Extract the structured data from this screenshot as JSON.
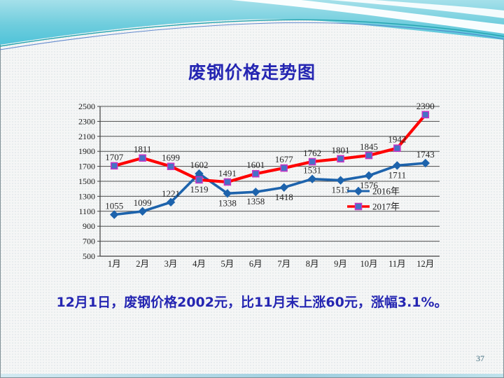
{
  "slide": {
    "title": "废钢价格走势图",
    "caption": "12月1日，废钢价格2002元，比11月末上涨60元，涨幅3.1%。",
    "page_number": "37"
  },
  "colors": {
    "title_text": "#2526b2",
    "caption_text": "#2526b2",
    "grid": "#4d4d4d",
    "axis": "#3f3f3f",
    "banner_teal_light": "#a5e0ea",
    "banner_teal_dark": "#4fc3d9",
    "accent_line_teal": "#21a3ae",
    "accent_line_blue": "#4a78c8"
  },
  "chart_data": {
    "type": "line",
    "title": "",
    "xlabel": "",
    "ylabel": "",
    "categories": [
      "1月",
      "2月",
      "3月",
      "4月",
      "5月",
      "6月",
      "7月",
      "8月",
      "9月",
      "10月",
      "11月",
      "12月"
    ],
    "series": [
      {
        "name": "2016年",
        "color": "#1d63ac",
        "line_width": 3.6,
        "marker": "diamond",
        "marker_fill": "#1d63ac",
        "marker_stroke": "#1d63ac",
        "values": [
          1055,
          1099,
          1221,
          1602,
          1338,
          1358,
          1418,
          1531,
          1513,
          1576,
          1711,
          1743
        ],
        "label_side": [
          "above",
          "above",
          "above",
          "above",
          "below",
          "below",
          "below",
          "above",
          "below",
          "below",
          "below",
          "above"
        ]
      },
      {
        "name": "2017年",
        "color": "#fe0000",
        "line_width": 4.2,
        "marker": "square",
        "marker_fill": "#4472c4",
        "marker_stroke": "#c633c6",
        "values": [
          1707,
          1811,
          1699,
          1519,
          1491,
          1601,
          1677,
          1762,
          1801,
          1845,
          1942,
          2390
        ],
        "label_side": [
          "above",
          "above",
          "above",
          "below",
          "above",
          "above",
          "above",
          "above",
          "above",
          "above",
          "above",
          "above"
        ]
      }
    ],
    "ylim": [
      500,
      2500
    ],
    "ytick_step": 200,
    "grid": true,
    "legend_position": "inside-right"
  }
}
